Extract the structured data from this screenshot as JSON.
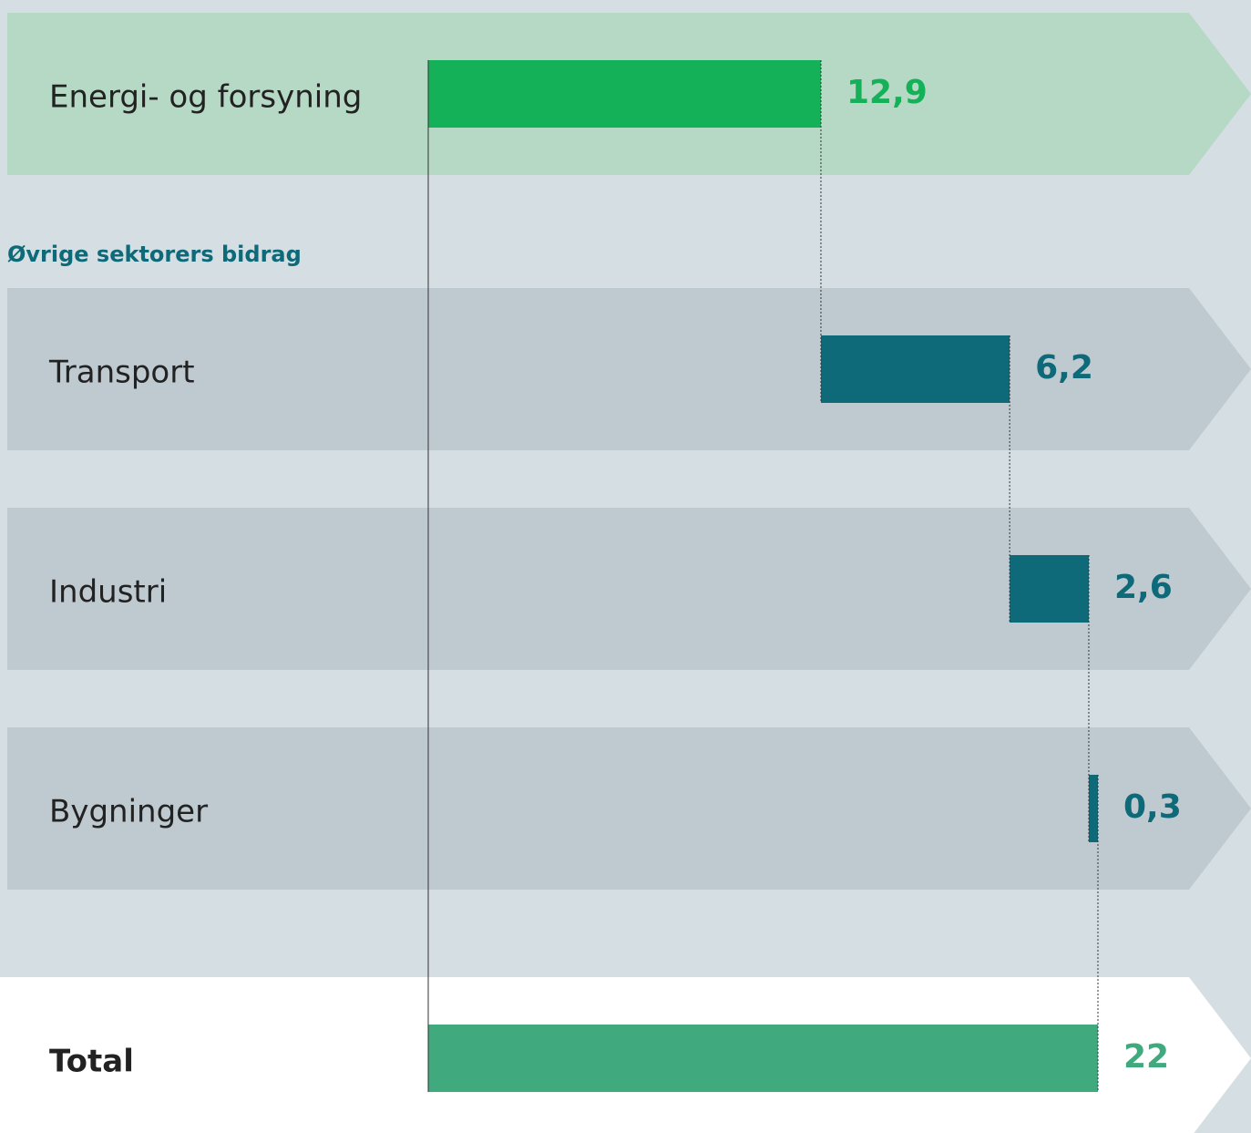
{
  "chart_data": {
    "type": "waterfall",
    "annotation": "Øvrige sektorers bidrag",
    "categories": [
      "Energi- og forsyning",
      "Transport",
      "Industri",
      "Bygninger",
      "Total"
    ],
    "values": [
      12.9,
      6.2,
      2.6,
      0.3,
      22
    ],
    "value_labels": [
      "12,9",
      "6,2",
      "2,6",
      "0,3",
      "22"
    ],
    "measure": [
      "absolute",
      "relative",
      "relative",
      "relative",
      "total"
    ],
    "colors": [
      "#15b159",
      "#0e6978",
      "#0e6978",
      "#0e6978",
      "#41a97e"
    ]
  }
}
